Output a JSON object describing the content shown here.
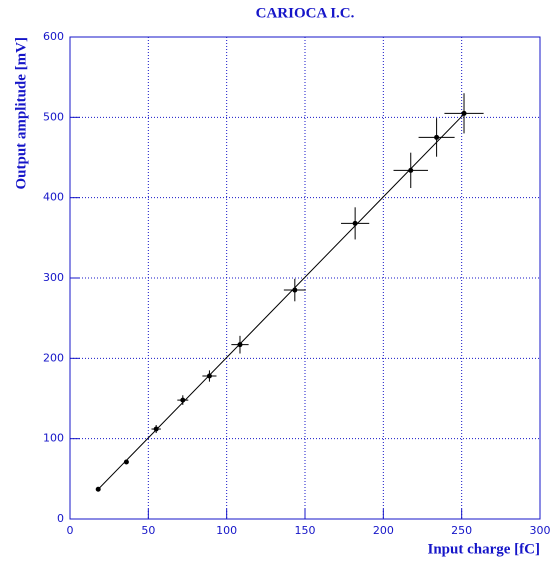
{
  "chart_data": {
    "type": "scatter",
    "title": "CARIOCA I.C.",
    "x_label": "Input charge [fC]",
    "y_label": "Output amplitude [mV]",
    "xlim": [
      0,
      300
    ],
    "ylim": [
      0,
      600
    ],
    "xticks": [
      0,
      50,
      100,
      150,
      200,
      250,
      300
    ],
    "yticks": [
      0,
      100,
      200,
      300,
      400,
      500,
      600
    ],
    "grid": true,
    "color": "#000000",
    "axis_color": "#1515c8",
    "series": [
      {
        "x": [
          18,
          36,
          55,
          72,
          89,
          108.5,
          143.5,
          182,
          217.5,
          234,
          251.5
        ],
        "values": [
          37,
          71,
          112,
          148,
          178,
          217,
          285,
          368,
          434,
          475,
          505
        ],
        "xerr": [
          1,
          1,
          3,
          3.5,
          4.5,
          5.5,
          7,
          9,
          11,
          11.5,
          12.5
        ],
        "errors": [
          2,
          2,
          5,
          6,
          7,
          11,
          14,
          20,
          22,
          24,
          25
        ]
      }
    ],
    "fit": {
      "x": [
        18,
        252
      ],
      "values": [
        37,
        505
      ]
    }
  }
}
